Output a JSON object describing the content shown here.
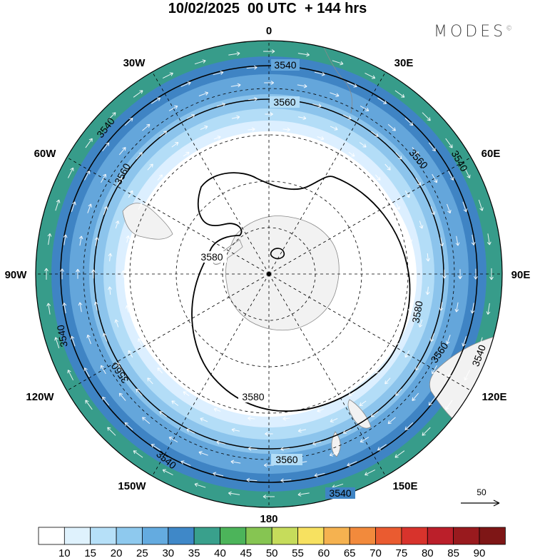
{
  "header": {
    "title": "10/02/2025  00 UTC  + 144 hrs",
    "brand": "MODES",
    "brand_mark": "©"
  },
  "map": {
    "projection": "south polar stereographic",
    "longitude_labels": [
      "0",
      "30E",
      "60E",
      "90E",
      "120E",
      "150E",
      "180",
      "150W",
      "120W",
      "90W",
      "60W",
      "30W"
    ],
    "contour_labels": [
      "3540",
      "3560",
      "3580"
    ],
    "reference_vector_label": "50",
    "wind_bands": [
      {
        "level": 10,
        "color": "#ffffff"
      },
      {
        "level": 15,
        "color": "#dcefff"
      },
      {
        "level": 20,
        "color": "#b3ddf7"
      },
      {
        "level": 25,
        "color": "#8cc4ec"
      },
      {
        "level": 30,
        "color": "#64a6db"
      },
      {
        "level": 35,
        "color": "#3f84c4"
      },
      {
        "level": 40,
        "color": "#379c8a"
      }
    ]
  },
  "colorbar": {
    "labels": [
      "10",
      "15",
      "20",
      "25",
      "30",
      "35",
      "40",
      "45",
      "50",
      "55",
      "60",
      "65",
      "70",
      "75",
      "80",
      "85",
      "90"
    ],
    "colors": [
      "#ffffff",
      "#dff2fd",
      "#b6e0f8",
      "#8ec9ee",
      "#64abe0",
      "#3f88c8",
      "#39a08c",
      "#4cb45a",
      "#86c552",
      "#c6dc5b",
      "#f7e160",
      "#f5b250",
      "#f28a3c",
      "#ea5b30",
      "#d8332c",
      "#bb1f2a",
      "#991a1e",
      "#7e1616"
    ]
  }
}
